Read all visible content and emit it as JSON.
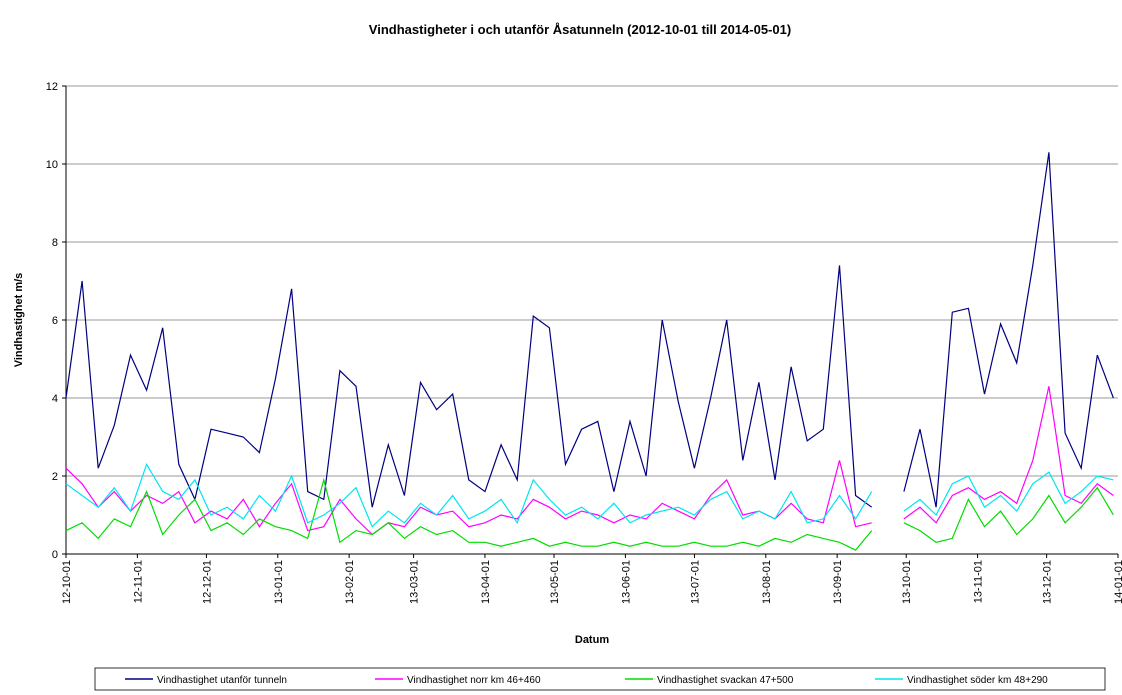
{
  "chart_data": {
    "type": "line",
    "title": "Vindhastigheter i och utanför Åsatunneln (2012-10-01 till 2014-05-01)",
    "xlabel": "Datum",
    "ylabel": "Vindhastighet m/s",
    "x": [
      "12-10-01",
      "12-10-08",
      "12-10-15",
      "12-10-22",
      "12-10-29",
      "12-11-05",
      "12-11-12",
      "12-11-19",
      "12-11-26",
      "12-12-03",
      "12-12-10",
      "12-12-17",
      "12-12-24",
      "12-12-31",
      "13-01-07",
      "13-01-14",
      "13-01-21",
      "13-01-28",
      "13-02-04",
      "13-02-11",
      "13-02-18",
      "13-02-25",
      "13-03-04",
      "13-03-11",
      "13-03-18",
      "13-03-25",
      "13-04-01",
      "13-04-08",
      "13-04-15",
      "13-04-22",
      "13-04-29",
      "13-05-06",
      "13-05-13",
      "13-05-20",
      "13-05-27",
      "13-06-03",
      "13-06-10",
      "13-06-17",
      "13-06-24",
      "13-07-01",
      "13-07-08",
      "13-07-15",
      "13-07-22",
      "13-07-29",
      "13-08-05",
      "13-08-12",
      "13-08-19",
      "13-08-26",
      "13-09-02",
      "13-09-09",
      "13-09-16",
      "13-09-23",
      "13-09-30",
      "13-10-07",
      "13-10-14",
      "13-10-21",
      "13-10-28",
      "13-11-04",
      "13-11-11",
      "13-11-18",
      "13-11-25",
      "13-12-02",
      "13-12-09",
      "13-12-16",
      "13-12-23",
      "13-12-30"
    ],
    "series": [
      {
        "name": "Vindhastighet utanför tunneln",
        "color": "#000080",
        "values": [
          4.0,
          7.0,
          2.2,
          3.3,
          5.1,
          4.2,
          5.8,
          2.3,
          1.4,
          3.2,
          3.1,
          3.0,
          2.6,
          4.5,
          6.8,
          1.6,
          1.4,
          4.7,
          4.3,
          1.2,
          2.8,
          1.5,
          4.4,
          3.7,
          4.1,
          1.9,
          1.6,
          2.8,
          1.9,
          6.1,
          5.8,
          2.3,
          3.2,
          3.4,
          1.6,
          3.4,
          2.0,
          6.0,
          3.9,
          2.2,
          4.0,
          6.0,
          2.4,
          4.4,
          1.9,
          4.8,
          2.9,
          3.2,
          7.4,
          1.5,
          1.2,
          null,
          1.6,
          3.2,
          1.2,
          6.2,
          6.3,
          4.1,
          5.9,
          4.9,
          7.4,
          10.3,
          3.1,
          2.2,
          5.1,
          4.0
        ]
      },
      {
        "name": "Vindhastighet norr km 46+460",
        "color": "#ff00ff",
        "values": [
          2.2,
          1.8,
          1.2,
          1.6,
          1.1,
          1.5,
          1.3,
          1.6,
          0.8,
          1.1,
          0.9,
          1.4,
          0.7,
          1.3,
          1.8,
          0.6,
          0.7,
          1.4,
          0.9,
          0.5,
          0.8,
          0.7,
          1.2,
          1.0,
          1.1,
          0.7,
          0.8,
          1.0,
          0.9,
          1.4,
          1.2,
          0.9,
          1.1,
          1.0,
          0.8,
          1.0,
          0.9,
          1.3,
          1.1,
          0.9,
          1.5,
          1.9,
          1.0,
          1.1,
          0.9,
          1.3,
          0.9,
          0.8,
          2.4,
          0.7,
          0.8,
          null,
          0.9,
          1.2,
          0.8,
          1.5,
          1.7,
          1.4,
          1.6,
          1.3,
          2.4,
          4.3,
          1.5,
          1.3,
          1.8,
          1.5
        ]
      },
      {
        "name": "Vindhastighet svackan 47+500",
        "color": "#00dd00",
        "values": [
          0.6,
          0.8,
          0.4,
          0.9,
          0.7,
          1.6,
          0.5,
          1.0,
          1.4,
          0.6,
          0.8,
          0.5,
          0.9,
          0.7,
          0.6,
          0.4,
          1.9,
          0.3,
          0.6,
          0.5,
          0.8,
          0.4,
          0.7,
          0.5,
          0.6,
          0.3,
          0.3,
          0.2,
          0.3,
          0.4,
          0.2,
          0.3,
          0.2,
          0.2,
          0.3,
          0.2,
          0.3,
          0.2,
          0.2,
          0.3,
          0.2,
          0.2,
          0.3,
          0.2,
          0.4,
          0.3,
          0.5,
          0.4,
          0.3,
          0.1,
          0.6,
          null,
          0.8,
          0.6,
          0.3,
          0.4,
          1.4,
          0.7,
          1.1,
          0.5,
          0.9,
          1.5,
          0.8,
          1.2,
          1.7,
          1.0
        ]
      },
      {
        "name": "Vindhastighet söder km 48+290",
        "color": "#00e5ee",
        "values": [
          1.8,
          1.5,
          1.2,
          1.7,
          1.1,
          2.3,
          1.6,
          1.4,
          1.9,
          1.0,
          1.2,
          0.9,
          1.5,
          1.1,
          2.0,
          0.8,
          1.0,
          1.3,
          1.7,
          0.7,
          1.1,
          0.8,
          1.3,
          1.0,
          1.5,
          0.9,
          1.1,
          1.4,
          0.8,
          1.9,
          1.4,
          1.0,
          1.2,
          0.9,
          1.3,
          0.8,
          1.0,
          1.1,
          1.2,
          1.0,
          1.4,
          1.6,
          0.9,
          1.1,
          0.9,
          1.6,
          0.8,
          0.9,
          1.5,
          0.9,
          1.6,
          null,
          1.1,
          1.4,
          1.0,
          1.8,
          2.0,
          1.2,
          1.5,
          1.1,
          1.8,
          2.1,
          1.3,
          1.6,
          2.0,
          1.9
        ]
      }
    ],
    "xlim": [
      "12-10-01",
      "14-01-01"
    ],
    "xticks": [
      "12-10-01",
      "12-11-01",
      "12-12-01",
      "13-01-01",
      "13-02-01",
      "13-03-01",
      "13-04-01",
      "13-05-01",
      "13-06-01",
      "13-07-01",
      "13-08-01",
      "13-09-01",
      "13-10-01",
      "13-11-01",
      "13-12-01",
      "14-01-01"
    ],
    "ylim": [
      0,
      12
    ],
    "yticks": [
      0,
      2,
      4,
      6,
      8,
      10,
      12
    ],
    "grid": true,
    "legend": "bottom"
  }
}
